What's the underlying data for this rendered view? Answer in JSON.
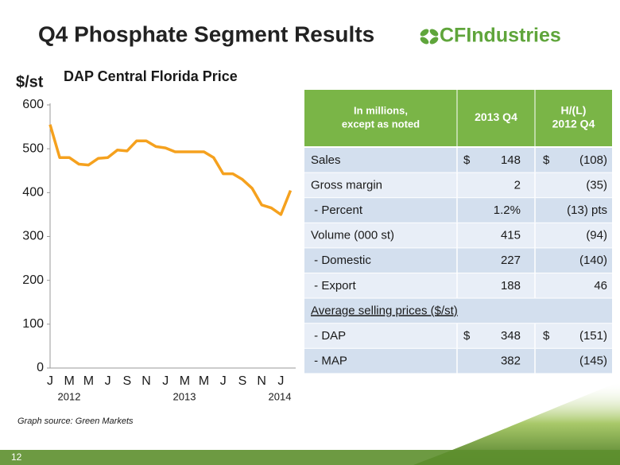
{
  "title": "Q4 Phosphate Segment Results",
  "logo": "CFIndustries",
  "chart_data": {
    "type": "line",
    "title": "DAP Central Florida Price",
    "y_label": "$/st",
    "categories": [
      "J",
      null,
      "M",
      null,
      "M",
      null,
      "J",
      null,
      "S",
      null,
      "N",
      null,
      "J",
      null,
      "M",
      null,
      "M",
      null,
      "J",
      null,
      "S",
      null,
      "N",
      null,
      "J",
      null
    ],
    "years": [
      "2012",
      "2013",
      "2014"
    ],
    "values": [
      555,
      480,
      480,
      465,
      463,
      478,
      480,
      497,
      495,
      518,
      518,
      505,
      502,
      493,
      493,
      493,
      493,
      480,
      443,
      443,
      430,
      410,
      372,
      365,
      350,
      405
    ],
    "color": "#f5a11e",
    "ylim": [
      0,
      600
    ],
    "yticks": [
      0,
      100,
      200,
      300,
      400,
      500,
      600
    ],
    "grid": false
  },
  "source": "Graph source:  Green Markets",
  "table": {
    "header": [
      [
        "In millions,",
        "except as noted"
      ],
      [
        "2013 Q4"
      ],
      [
        "H/(L)",
        "2012 Q4"
      ]
    ],
    "rows": [
      {
        "label": "Sales",
        "q4_currency": "$",
        "q4": "148",
        "change_currency": "$",
        "change": "(108)"
      },
      {
        "label": "Gross margin",
        "q4": "2",
        "change": "(35)"
      },
      {
        "label": " - Percent",
        "q4": "1.2%",
        "change": "(13) pts"
      },
      {
        "label": "Volume (000 st)",
        "q4": "415",
        "change": "(94)"
      },
      {
        "label": " - Domestic",
        "q4": "227",
        "change": "(140)"
      },
      {
        "label": " - Export",
        "q4": "188",
        "change": "46"
      },
      {
        "label": "Average selling prices ($/st)"
      },
      {
        "label": " - DAP",
        "q4_currency": "$",
        "q4": "348",
        "change_currency": "$",
        "change": "(151)"
      },
      {
        "label": " - MAP",
        "q4": "382",
        "change": "(145)"
      }
    ]
  },
  "page_number": "12"
}
